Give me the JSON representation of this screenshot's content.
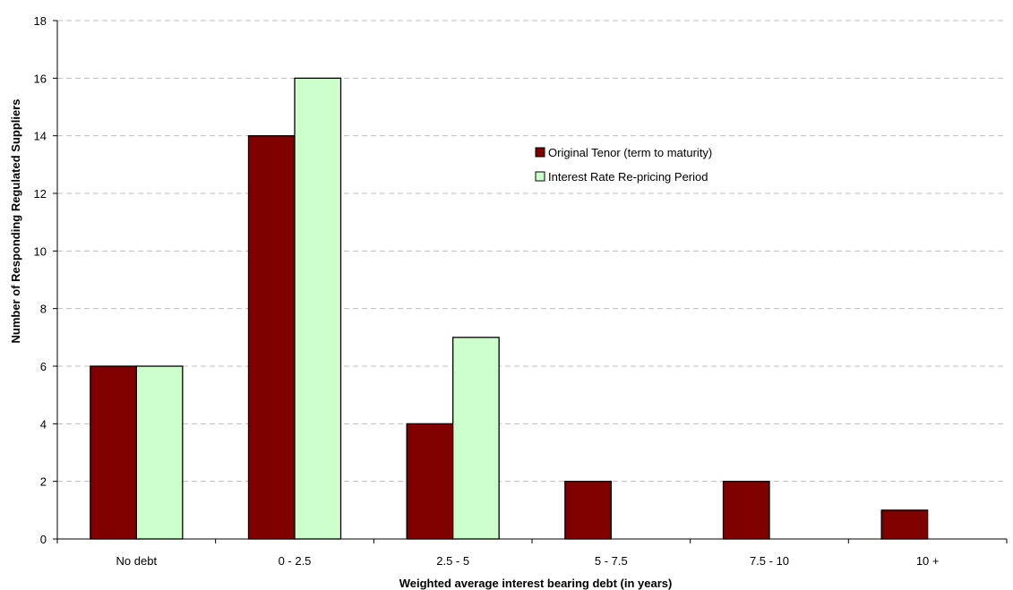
{
  "chart_data": {
    "type": "bar",
    "title": "",
    "xlabel": "Weighted average interest bearing debt (in years)",
    "ylabel": "Number of Responding Regulated Suppliers",
    "ylim": [
      0,
      18
    ],
    "yticks": [
      0,
      2,
      4,
      6,
      8,
      10,
      12,
      14,
      16,
      18
    ],
    "grid": true,
    "legend_position": "upper-center",
    "categories": [
      "No debt",
      "0 - 2.5",
      "2.5 - 5",
      "5 - 7.5",
      "7.5 - 10",
      "10 +"
    ],
    "series": [
      {
        "name": "Original Tenor (term to maturity)",
        "color": "#800000",
        "values": [
          6,
          14,
          4,
          2,
          2,
          1
        ]
      },
      {
        "name": "Interest Rate Re-pricing Period",
        "color": "#ccffcc",
        "values": [
          6,
          16,
          7,
          0,
          0,
          0
        ]
      }
    ]
  }
}
